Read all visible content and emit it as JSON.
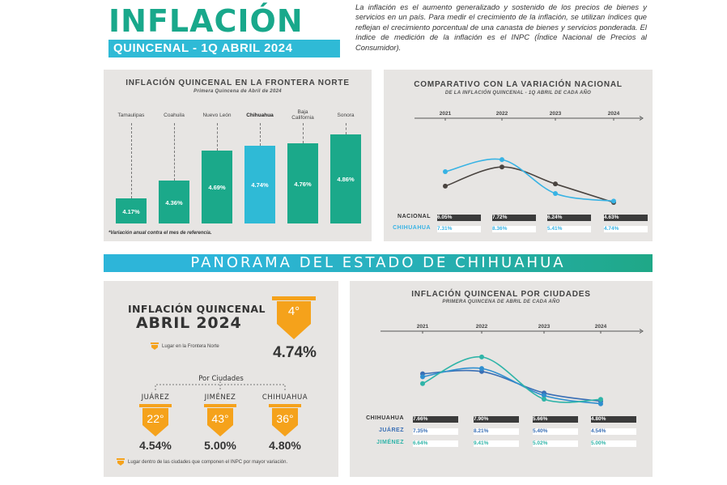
{
  "header": {
    "title": "INFLACIÓN",
    "subtitle": "QUINCENAL - 1Q ABRIL 2024",
    "intro": "La inflación es el aumento generalizado y sostenido de los precios de bienes y servicios en un país. Para medir el crecimiento de la inflación, se utilizan índices que reflejan el crecimiento porcentual de una canasta de bienes y servicios ponderada. El índice de medición de la inflación es el INPC (Índice Nacional de Precios al Consumidor)."
  },
  "banner": "PANORAMA DEL ESTADO DE CHIHUAHUA",
  "colors": {
    "teal": "#1ba98a",
    "cyan": "#2fbad6",
    "orange": "#f5a21b",
    "dark_line": "#4a4440",
    "light_line": "#38b3e4",
    "chihuahua_line": "#3a6fb5",
    "juarez_line": "#2f8fcf",
    "jimenez_line": "#2fb4a8"
  },
  "chart_data": [
    {
      "type": "bar",
      "title": "INFLACIÓN QUINCENAL EN LA FRONTERA NORTE",
      "subtitle": "Primera Quincena de Abril de 2024",
      "note": "*Variación anual contra el mes de referencia.",
      "categories": [
        "Tamaulipas",
        "Coahuila",
        "Nuevo León",
        "Chihuahua",
        "Baja California",
        "Sonora"
      ],
      "values": [
        4.17,
        4.36,
        4.69,
        4.74,
        4.76,
        4.86
      ],
      "value_labels": [
        "4.17%",
        "4.36%",
        "4.69%",
        "4.74%",
        "4.76%",
        "4.86%"
      ],
      "highlight": "Chihuahua",
      "ylim": [
        3.9,
        5.0
      ]
    },
    {
      "type": "line",
      "title": "COMPARATIVO CON LA VARIACIÓN NACIONAL",
      "subtitle": "DE LA INFLACIÓN QUINCENAL - 1Q ABRIL DE CADA AÑO",
      "x": [
        "2021",
        "2022",
        "2023",
        "2024"
      ],
      "series": [
        {
          "name": "NACIONAL",
          "values": [
            6.05,
            7.72,
            6.24,
            4.63
          ],
          "labels": [
            "6.05%",
            "7.72%",
            "6.24%",
            "4.63%"
          ]
        },
        {
          "name": "CHIHUAHUA",
          "values": [
            7.31,
            8.36,
            5.41,
            4.74
          ],
          "labels": [
            "7.31%",
            "8.36%",
            "5.41%",
            "4.74%"
          ]
        }
      ],
      "ylim": [
        3.5,
        9.5
      ]
    },
    {
      "type": "line",
      "title": "INFLACIÓN QUINCENAL POR CIUDADES",
      "subtitle": "PRIMERA QUINCENA DE ABRIL DE CADA AÑO",
      "x": [
        "2021",
        "2022",
        "2023",
        "2024"
      ],
      "series": [
        {
          "name": "CHIHUAHUA",
          "values": [
            7.66,
            7.9,
            5.66,
            4.8
          ],
          "labels": [
            "7.66%",
            "7.90%",
            "5.66%",
            "4.80%"
          ]
        },
        {
          "name": "JUÁREZ",
          "values": [
            7.35,
            8.21,
            5.4,
            4.54
          ],
          "labels": [
            "7.35%",
            "8.21%",
            "5.40%",
            "4.54%"
          ]
        },
        {
          "name": "JIMÉNEZ",
          "values": [
            6.64,
            9.41,
            5.02,
            5.0
          ],
          "labels": [
            "6.64%",
            "9.41%",
            "5.02%",
            "5.00%"
          ]
        }
      ],
      "ylim": [
        3.0,
        11.0
      ]
    }
  ],
  "panorama": {
    "title_line1": "INFLACIÓN QUINCENAL",
    "title_line2": "ABRIL 2024",
    "place": "4°",
    "percent": "4.74%",
    "legend_frontera": "Lugar en la Frontera Norte",
    "por_ciudades": "Por Ciudades",
    "cities": [
      {
        "name": "JUÁREZ",
        "rank": "22°",
        "percent": "4.54%"
      },
      {
        "name": "JIMÉNEZ",
        "rank": "43°",
        "percent": "5.00%"
      },
      {
        "name": "CHIHUAHUA",
        "rank": "36°",
        "percent": "4.80%"
      }
    ],
    "legend_ciudades": "Lugar dentro de las ciudades que componen el INPC por mayor variación."
  }
}
